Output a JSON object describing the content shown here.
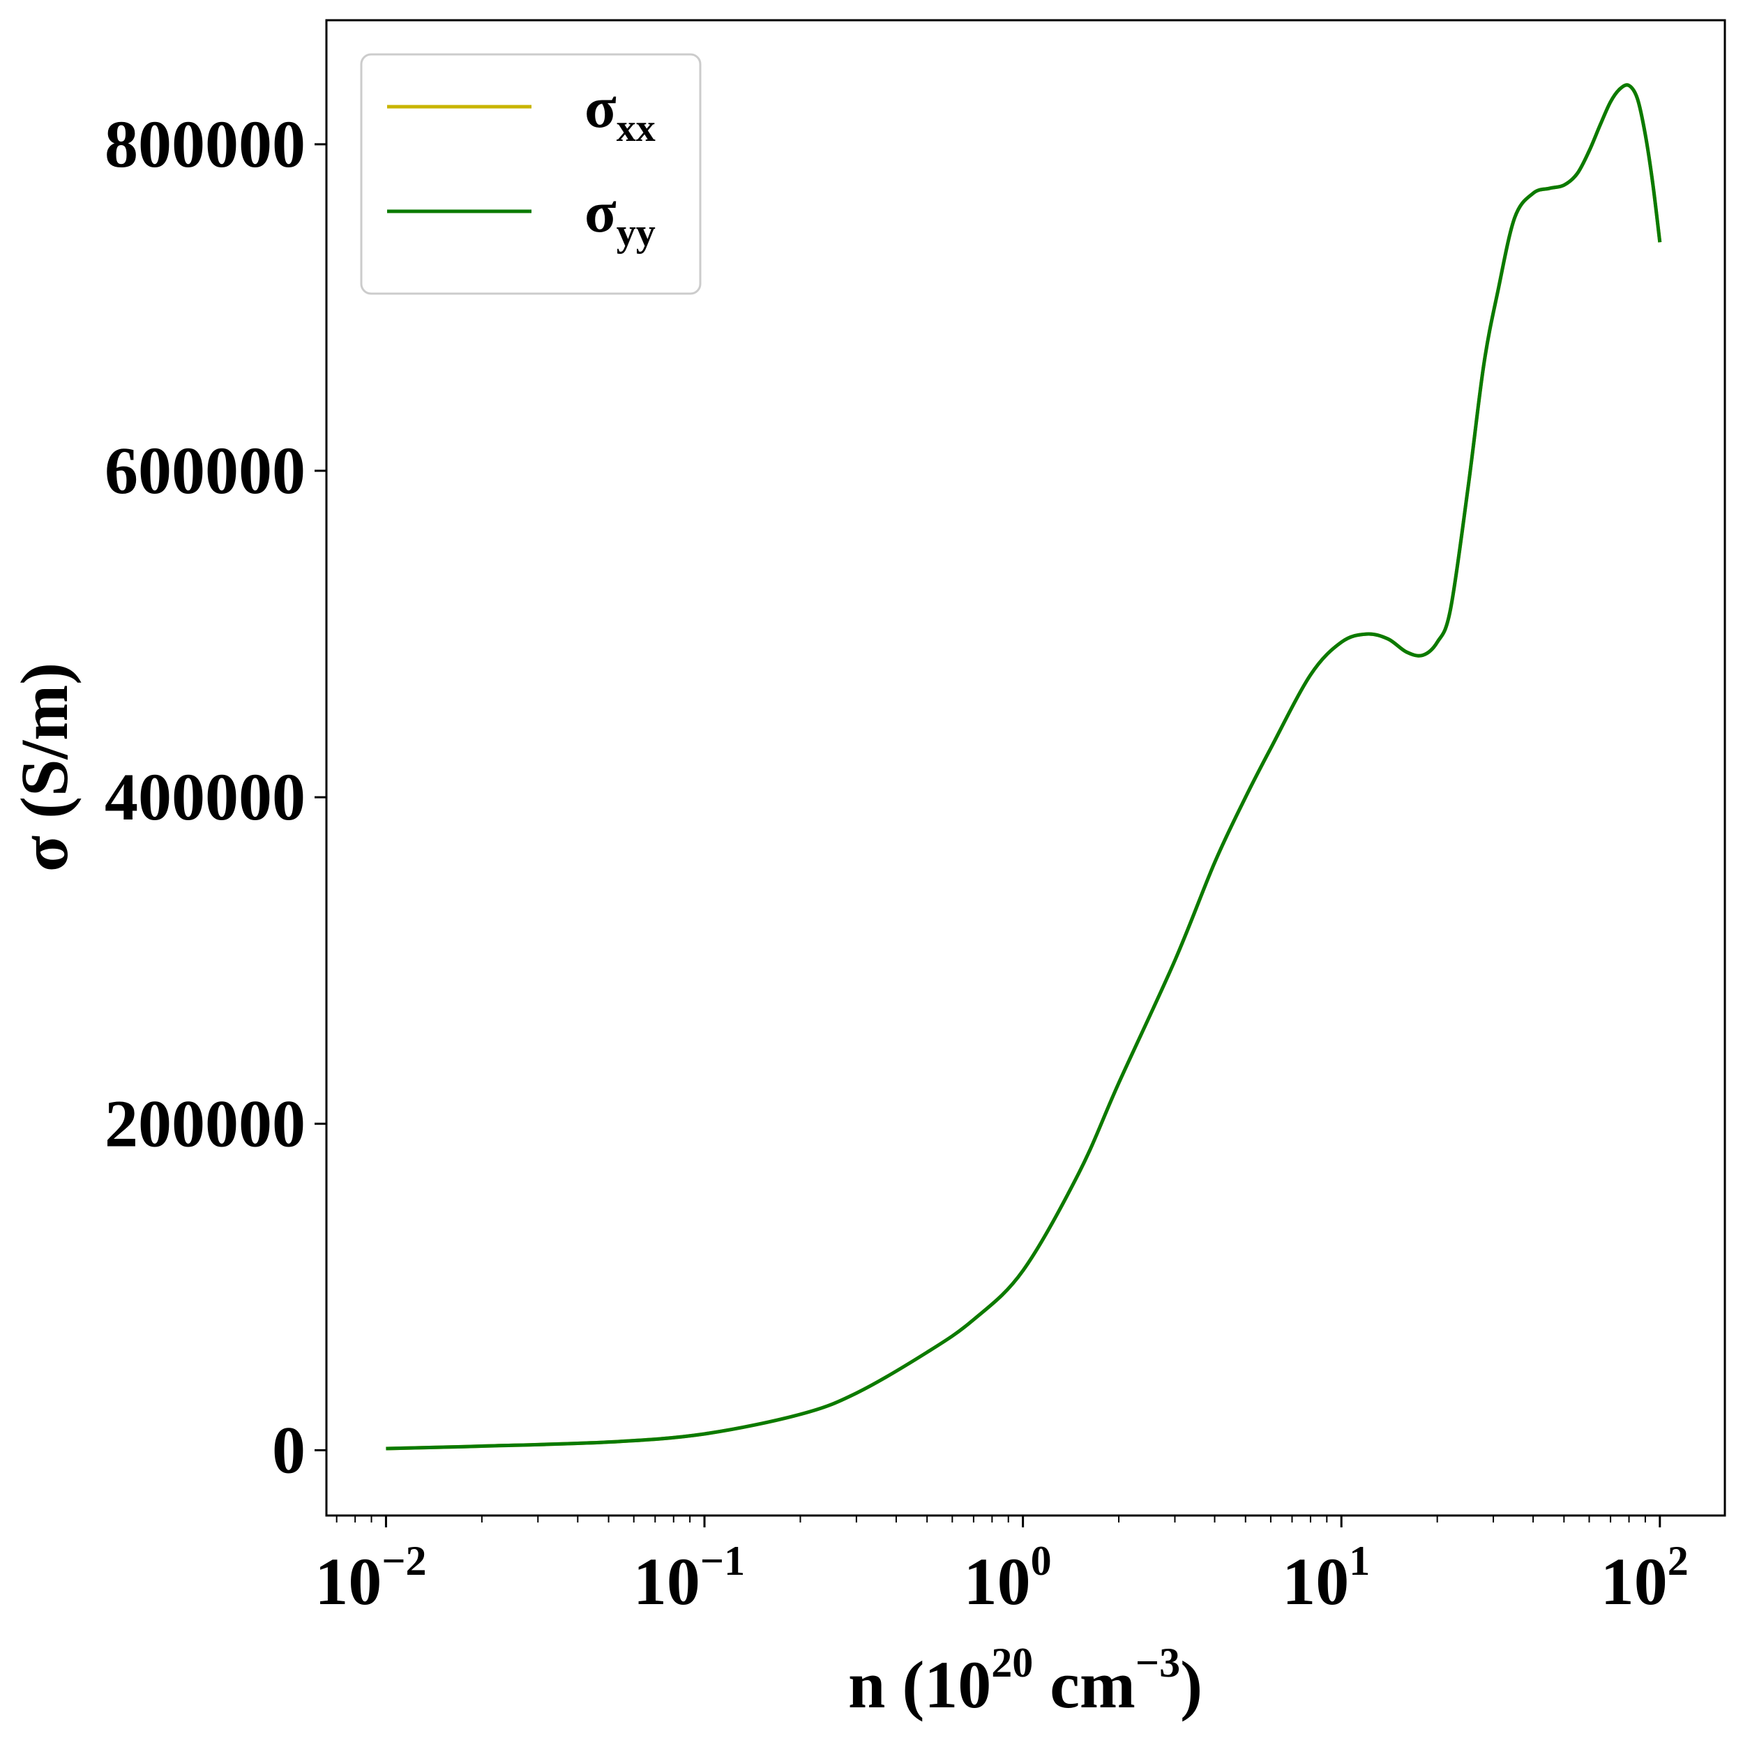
{
  "chart_data": {
    "type": "line",
    "title": "",
    "xlabel": {
      "prefix": "n (10",
      "sup1": "20",
      "mid": " cm",
      "sup2": "−3",
      "suffix": ")"
    },
    "ylabel": "σ (S/m)",
    "xscale": "log",
    "xlim": [
      0.0065,
      160
    ],
    "ylim": [
      -40000,
      876000
    ],
    "grid": false,
    "legend_position": "top-left",
    "x_ticks": [
      {
        "value": 0.01,
        "base": "10",
        "exp": "−2"
      },
      {
        "value": 0.1,
        "base": "10",
        "exp": "−1"
      },
      {
        "value": 1,
        "base": "10",
        "exp": "0"
      },
      {
        "value": 10,
        "base": "10",
        "exp": "1"
      },
      {
        "value": 100,
        "base": "10",
        "exp": "2"
      }
    ],
    "y_ticks": [
      {
        "value": 0,
        "label": "0"
      },
      {
        "value": 200000,
        "label": "200000"
      },
      {
        "value": 400000,
        "label": "400000"
      },
      {
        "value": 600000,
        "label": "600000"
      },
      {
        "value": 800000,
        "label": "800000"
      }
    ],
    "series": [
      {
        "name": "σxx",
        "legend_symbol": "σ",
        "legend_sub": "xx",
        "color": "#c8b400",
        "x": [
          0.01,
          0.02,
          0.05,
          0.1,
          0.2,
          0.3,
          0.5,
          0.7,
          1.0,
          1.5,
          2.0,
          3.0,
          4.0,
          5.0,
          6.0,
          8.0,
          10.0,
          12.0,
          14.0,
          16.0,
          18.0,
          20.0,
          22.0,
          25.0,
          28.0,
          31.0,
          35.0,
          40.0,
          45.0,
          50.0,
          55.0,
          60.0,
          65.0,
          70.0,
          75.0,
          80.0,
          85.0,
          90.0,
          95.0,
          100.0
        ],
        "y": [
          1000,
          2500,
          5000,
          10000,
          22000,
          35000,
          60000,
          80000,
          110000,
          170000,
          225000,
          300000,
          360000,
          400000,
          430000,
          475000,
          495000,
          500000,
          497000,
          489000,
          487000,
          495000,
          515000,
          590000,
          665000,
          710000,
          755000,
          770000,
          773000,
          775000,
          782000,
          796000,
          812000,
          826000,
          834000,
          836000,
          828000,
          806000,
          776000,
          740000
        ]
      },
      {
        "name": "σyy",
        "legend_symbol": "σ",
        "legend_sub": "yy",
        "color": "#0a7a00",
        "x": [
          0.01,
          0.02,
          0.05,
          0.1,
          0.2,
          0.3,
          0.5,
          0.7,
          1.0,
          1.5,
          2.0,
          3.0,
          4.0,
          5.0,
          6.0,
          8.0,
          10.0,
          12.0,
          14.0,
          16.0,
          18.0,
          20.0,
          22.0,
          25.0,
          28.0,
          31.0,
          35.0,
          40.0,
          45.0,
          50.0,
          55.0,
          60.0,
          65.0,
          70.0,
          75.0,
          80.0,
          85.0,
          90.0,
          95.0,
          100.0
        ],
        "y": [
          1000,
          2500,
          5000,
          10000,
          22000,
          35000,
          60000,
          80000,
          110000,
          170000,
          225000,
          300000,
          360000,
          400000,
          430000,
          475000,
          495000,
          500000,
          497000,
          489000,
          487000,
          495000,
          515000,
          590000,
          665000,
          710000,
          755000,
          770000,
          773000,
          775000,
          782000,
          796000,
          812000,
          826000,
          834000,
          836000,
          828000,
          806000,
          776000,
          740000
        ]
      }
    ]
  }
}
